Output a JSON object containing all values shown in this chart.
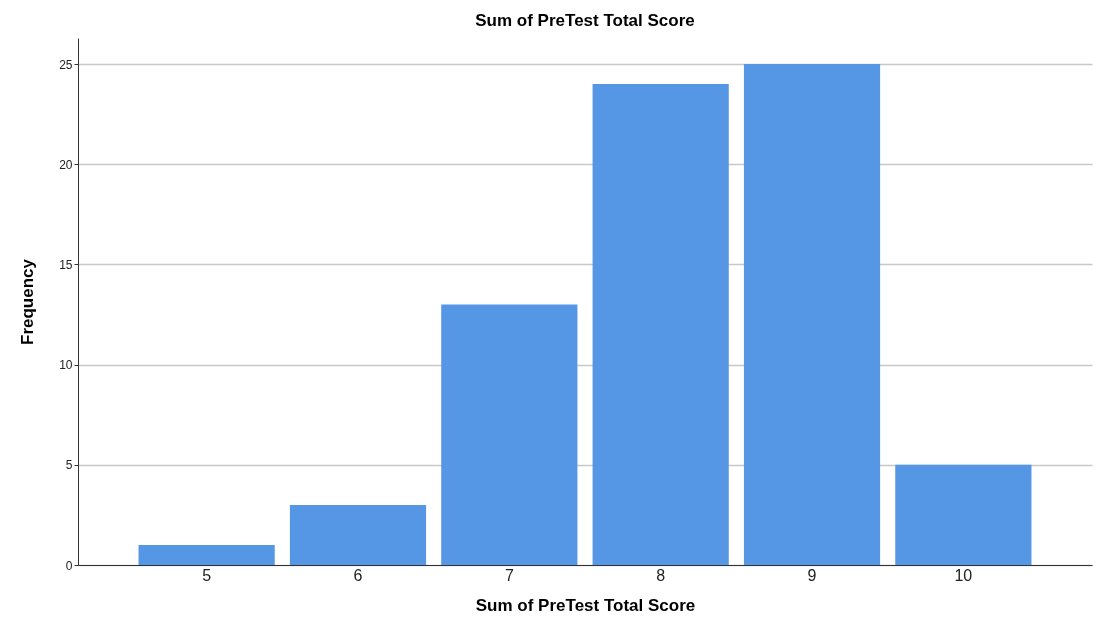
{
  "chart_data": {
    "type": "bar",
    "title": "Sum of PreTest Total Score",
    "xlabel": "Sum of PreTest Total Score",
    "ylabel": "Frequency",
    "categories": [
      "5",
      "6",
      "7",
      "8",
      "9",
      "10"
    ],
    "values": [
      1,
      3,
      13,
      24,
      25,
      5
    ],
    "color": "#5596e5",
    "ylim": [
      0,
      26.3
    ],
    "yticks": [
      0,
      5,
      10,
      15,
      20,
      25
    ],
    "grid": "y"
  }
}
